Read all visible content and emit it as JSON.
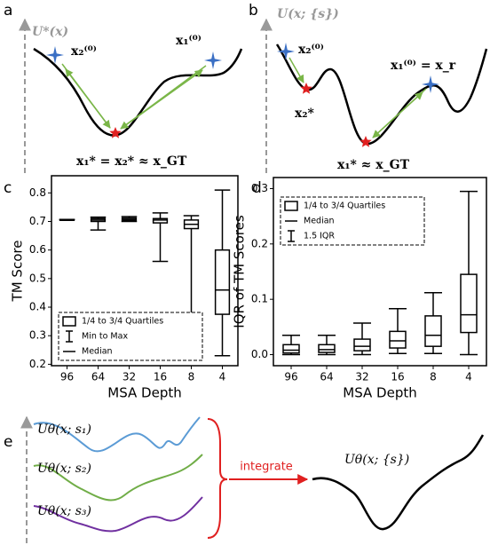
{
  "panel_labels": [
    "a",
    "b",
    "c",
    "d",
    "e"
  ],
  "panel_a": {
    "energy": "U*(x)",
    "start2": "x₂⁽⁰⁾",
    "start1": "x₁⁽⁰⁾",
    "result": "x₁* = x₂* ≈ x_GT"
  },
  "panel_b": {
    "energy": "U(x; {s})",
    "start2": "x₂⁽⁰⁾",
    "min2": "x₂*",
    "start1": "x₁⁽⁰⁾ = x_r",
    "result": "x₁* ≈ x_GT"
  },
  "panel_e": {
    "curve1": "Uθ(x; s₁)",
    "curve2": "Uθ(x; s₂)",
    "curve3": "Uθ(x; s₃)",
    "arrow": "integrate",
    "result": "Uθ(x; {s})"
  },
  "chart_data": [
    {
      "type": "box",
      "xlabel": "MSA Depth",
      "ylabel": "TM Score",
      "categories": [
        "96",
        "64",
        "32",
        "16",
        "8",
        "4"
      ],
      "min": [
        0.706,
        0.67,
        0.7,
        0.56,
        0.31,
        0.23
      ],
      "q1": [
        0.705,
        0.7,
        0.703,
        0.695,
        0.675,
        0.375
      ],
      "median": [
        0.706,
        0.705,
        0.707,
        0.705,
        0.69,
        0.46
      ],
      "q3": [
        0.707,
        0.71,
        0.712,
        0.71,
        0.705,
        0.6
      ],
      "max": [
        0.707,
        0.715,
        0.717,
        0.73,
        0.72,
        0.81
      ],
      "ylim": [
        0.195,
        0.86
      ],
      "yticks": [
        0.2,
        0.3,
        0.4,
        0.5,
        0.6,
        0.7,
        0.8
      ],
      "legend": [
        "1/4 to 3/4 Quartiles",
        "Min to Max",
        "Median"
      ],
      "legend_position": "lower left"
    },
    {
      "type": "box",
      "xlabel": "MSA Depth",
      "ylabel": "IQR of TM Scores",
      "categories": [
        "96",
        "64",
        "32",
        "16",
        "8",
        "4"
      ],
      "min": [
        0,
        0,
        0,
        0.002,
        0.002,
        0
      ],
      "q1": [
        0.003,
        0.004,
        0.007,
        0.012,
        0.015,
        0.04
      ],
      "median": [
        0.008,
        0.009,
        0.015,
        0.025,
        0.035,
        0.072
      ],
      "q3": [
        0.018,
        0.018,
        0.028,
        0.042,
        0.07,
        0.145
      ],
      "max": [
        0.035,
        0.035,
        0.057,
        0.083,
        0.112,
        0.295
      ],
      "ylim": [
        -0.02,
        0.32
      ],
      "yticks": [
        {
          "value": 0,
          "label": "0.0"
        },
        0.1,
        0.2,
        0.3
      ],
      "legend": [
        "1/4 to 3/4 Quartiles",
        "Median",
        "1.5 IQR"
      ],
      "legend_position": "upper left"
    }
  ]
}
